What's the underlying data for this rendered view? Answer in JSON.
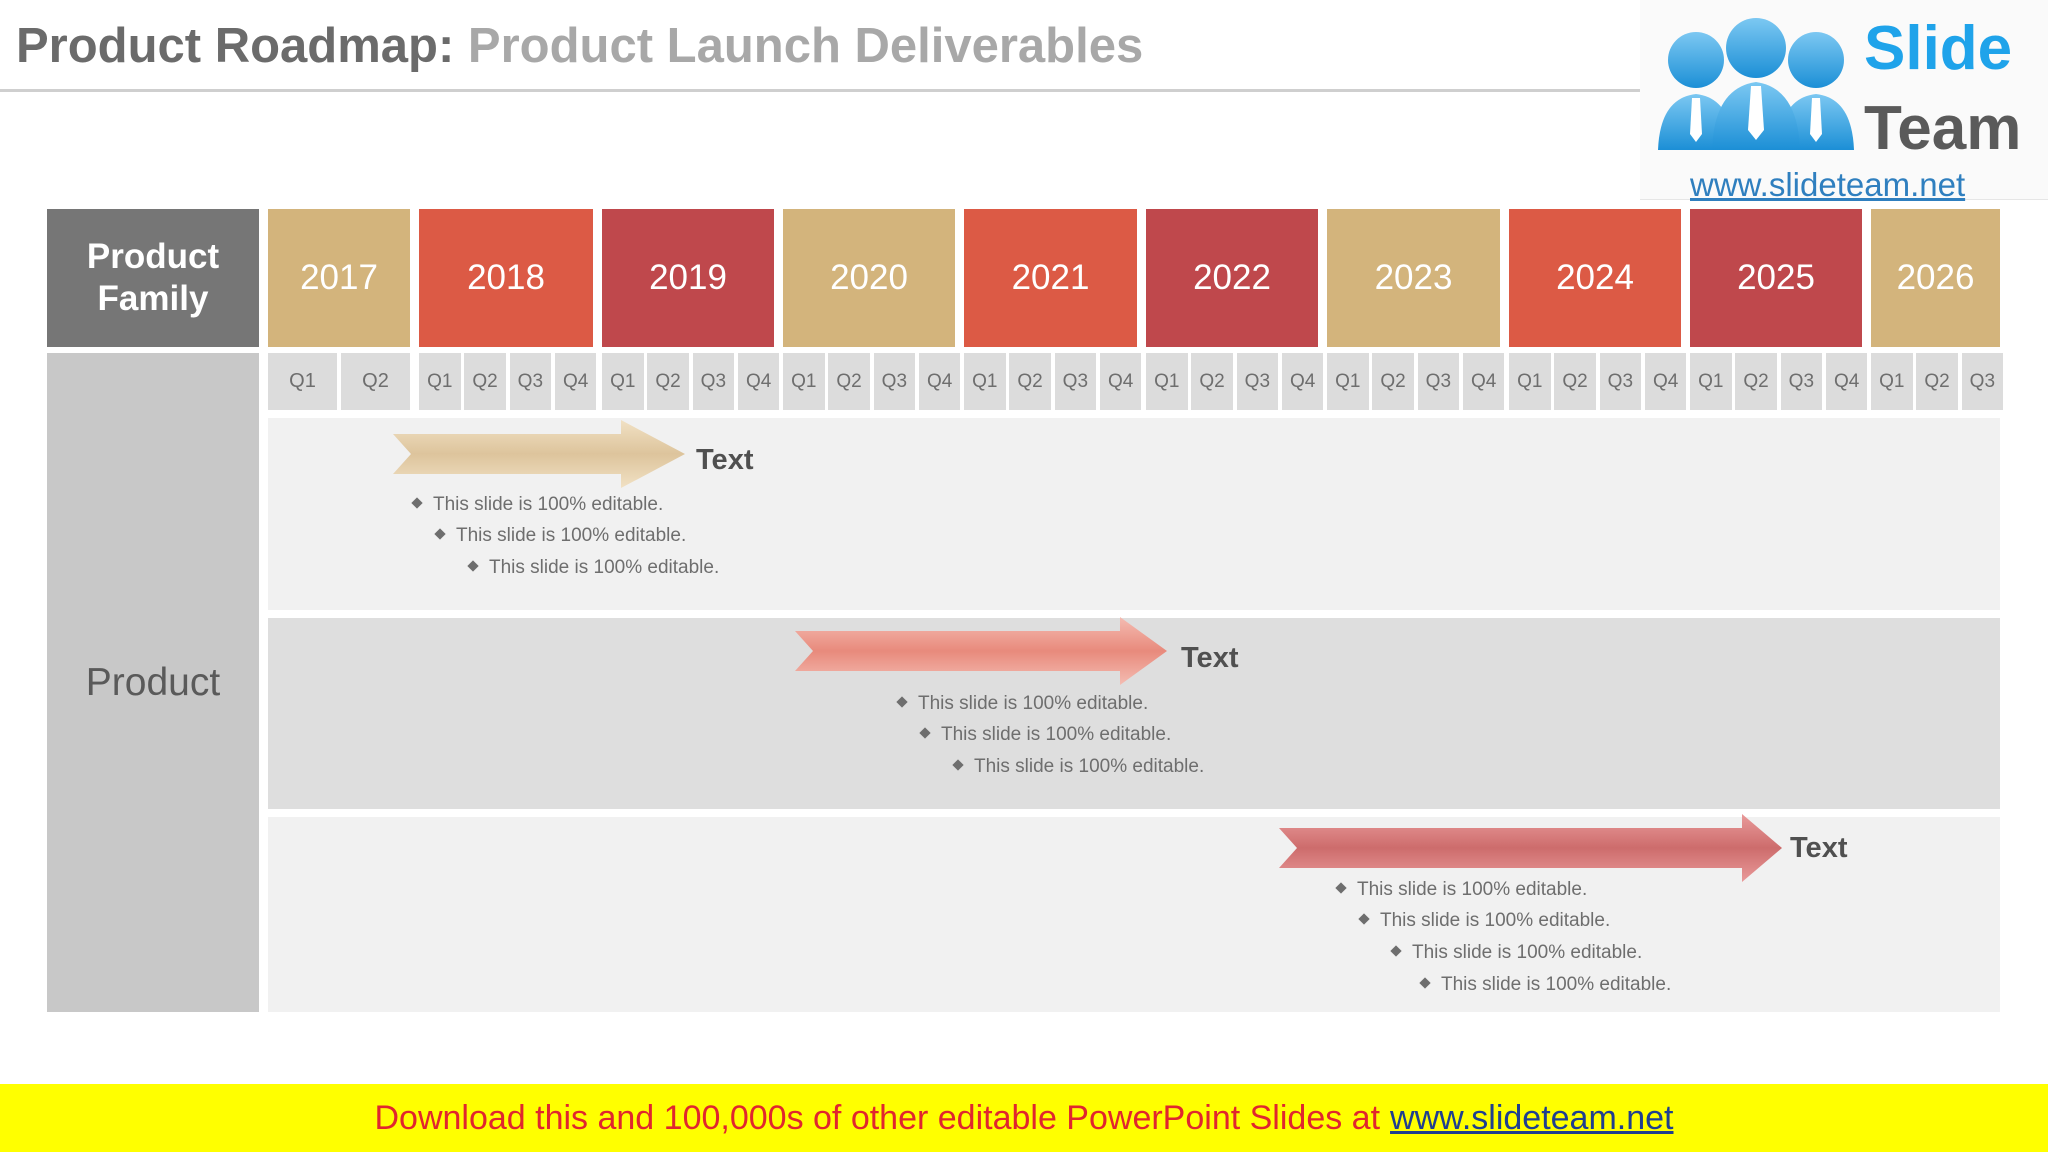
{
  "title": {
    "main": "Product Roadmap:",
    "sub": "Product Launch Deliverables"
  },
  "logo": {
    "word1": "Slide",
    "word2": "Team",
    "url": "www.slideteam.net"
  },
  "header": {
    "product_family": "Product Family"
  },
  "row_label": "Product",
  "years": [
    "2017",
    "2018",
    "2019",
    "2020",
    "2021",
    "2022",
    "2023",
    "2024",
    "2025",
    "2026"
  ],
  "quarters_2017": [
    "Q1",
    "Q2"
  ],
  "quarter_numbers": [
    "1",
    "2",
    "3",
    "4"
  ],
  "quarter_letter": "Q",
  "quarters_2026": [
    "1",
    "2",
    "3"
  ],
  "colors": {
    "tan": "#d3b47c",
    "orange_red": "#dc5a45",
    "crimson": "#bf484c",
    "header_gray": "#767676",
    "side_gray": "#c8c8c8"
  },
  "rows": [
    {
      "label": "Text",
      "bullets": [
        "This slide is 100% editable.",
        "This slide is 100% editable.",
        "This slide is 100% editable."
      ]
    },
    {
      "label": "Text",
      "bullets": [
        "This slide is 100% editable.",
        "This slide is 100% editable.",
        "This slide is 100% editable."
      ]
    },
    {
      "label": "Text",
      "bullets": [
        "This slide is 100% editable.",
        "This slide is 100% editable.",
        "This slide is 100% editable.",
        "This slide is 100% editable."
      ]
    }
  ],
  "footer": {
    "text": "Download this and 100,000s of other editable PowerPoint Slides at",
    "link": "www.slideteam.net"
  }
}
